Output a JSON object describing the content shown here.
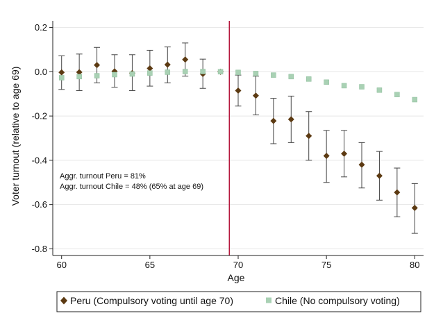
{
  "chart_data": {
    "type": "scatter",
    "title": "",
    "xlabel": "Age",
    "ylabel": "Voter turnout (relative to age 69)",
    "xlim": [
      59.5,
      80.5
    ],
    "ylim": [
      -0.83,
      0.23
    ],
    "x_ticks": [
      60,
      65,
      70,
      75,
      80
    ],
    "y_ticks": [
      0.2,
      0.0,
      -0.2,
      -0.4,
      -0.6,
      -0.8
    ],
    "x_tick_labels": [
      "60",
      "65",
      "70",
      "75",
      "80"
    ],
    "y_tick_labels": [
      "0.2",
      "0.0",
      "-0.2",
      "-0.4",
      "-0.6",
      "-0.8"
    ],
    "grid": true,
    "cutoff_line": 69.5,
    "legend_position": "bottom",
    "annotations": [
      "Aggr. turnout Peru = 81%",
      "Aggr. turnout Chile = 48% (65% at age 69)"
    ],
    "series": [
      {
        "name": "Peru (Compulsory voting until age 70)",
        "marker": "diamond",
        "color": "#5c3a12",
        "x": [
          60,
          61,
          62,
          63,
          64,
          65,
          66,
          67,
          68,
          69,
          70,
          71,
          72,
          73,
          74,
          75,
          76,
          77,
          78,
          79,
          80
        ],
        "y": [
          -0.003,
          -0.002,
          0.03,
          0.002,
          -0.006,
          0.015,
          0.032,
          0.055,
          -0.01,
          0.0,
          -0.085,
          -0.108,
          -0.222,
          -0.215,
          -0.29,
          -0.38,
          -0.37,
          -0.42,
          -0.47,
          -0.545,
          -0.615
        ],
        "ci_low": [
          -0.08,
          -0.085,
          -0.05,
          -0.07,
          -0.085,
          -0.065,
          -0.05,
          -0.02,
          -0.075,
          0.0,
          -0.155,
          -0.195,
          -0.325,
          -0.32,
          -0.4,
          -0.5,
          -0.475,
          -0.525,
          -0.58,
          -0.655,
          -0.73
        ],
        "ci_high": [
          0.072,
          0.08,
          0.11,
          0.077,
          0.077,
          0.097,
          0.112,
          0.13,
          0.057,
          0.0,
          -0.015,
          -0.02,
          -0.12,
          -0.11,
          -0.18,
          -0.265,
          -0.265,
          -0.32,
          -0.36,
          -0.435,
          -0.505
        ]
      },
      {
        "name": "Chile (No compulsory voting)",
        "marker": "square",
        "color": "#a9d1b4",
        "ci_color": "#2f5540",
        "x": [
          60,
          61,
          62,
          63,
          64,
          65,
          66,
          67,
          68,
          69,
          70,
          71,
          72,
          73,
          74,
          75,
          76,
          77,
          78,
          79,
          80
        ],
        "y": [
          -0.027,
          -0.022,
          -0.018,
          -0.013,
          -0.01,
          -0.006,
          -0.002,
          0.001,
          0.001,
          0.0,
          -0.003,
          -0.008,
          -0.015,
          -0.022,
          -0.033,
          -0.047,
          -0.063,
          -0.068,
          -0.083,
          -0.103,
          -0.126
        ],
        "ci_low": [
          -0.033,
          -0.028,
          -0.024,
          -0.019,
          -0.016,
          -0.012,
          -0.008,
          -0.005,
          -0.005,
          0.0,
          -0.009,
          -0.014,
          -0.021,
          -0.028,
          -0.04,
          -0.054,
          -0.07,
          -0.075,
          -0.09,
          -0.11,
          -0.134
        ],
        "ci_high": [
          -0.021,
          -0.016,
          -0.012,
          -0.007,
          -0.004,
          0.0,
          0.004,
          0.007,
          0.007,
          0.0,
          0.003,
          -0.002,
          -0.009,
          -0.016,
          -0.026,
          -0.04,
          -0.056,
          -0.061,
          -0.076,
          -0.096,
          -0.118
        ]
      }
    ],
    "colors": {
      "grid": "#e6e6e6",
      "axis": "#222222",
      "cutoff": "#b5163b",
      "frame": "#222222"
    }
  }
}
